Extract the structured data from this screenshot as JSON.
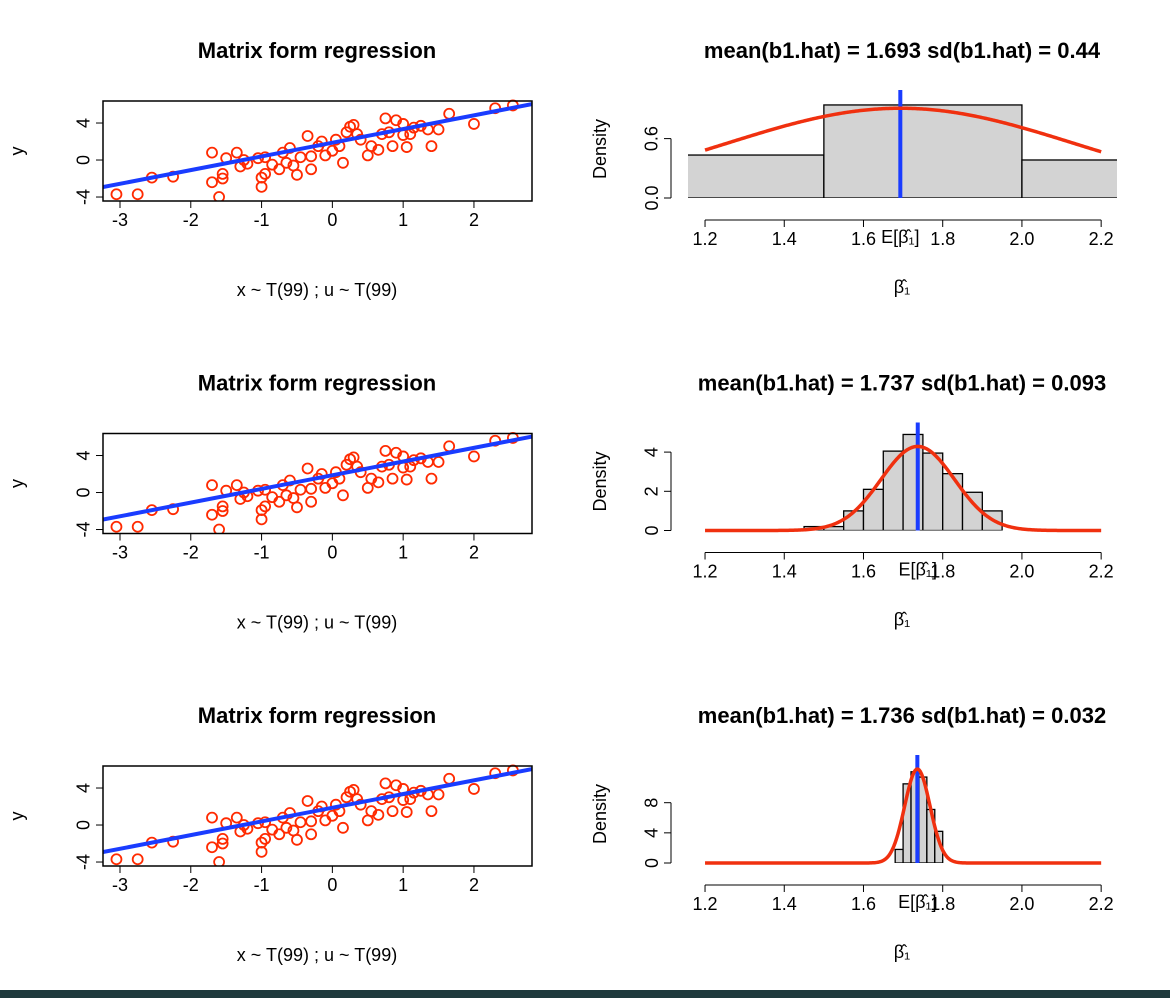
{
  "chart_data": [
    {
      "type": "scatter",
      "title": "Matrix form regression",
      "xlabel": "x ~ T(99) ; u ~ T(99)",
      "ylabel": "y",
      "x": [
        -3.05,
        -2.75,
        -2.55,
        -2.25,
        -1.7,
        -1.7,
        -1.6,
        -1.55,
        -1.55,
        -1.5,
        -1.35,
        -1.3,
        -1.25,
        -1.2,
        -1.05,
        -1.0,
        -1.0,
        -0.95,
        -0.95,
        -0.85,
        -0.75,
        -0.7,
        -0.65,
        -0.6,
        -0.55,
        -0.5,
        -0.45,
        -0.35,
        -0.3,
        -0.3,
        -0.2,
        -0.15,
        -0.1,
        0.0,
        0.05,
        0.1,
        0.15,
        0.2,
        0.25,
        0.3,
        0.35,
        0.4,
        0.5,
        0.55,
        0.65,
        0.7,
        0.75,
        0.8,
        0.85,
        0.9,
        1.0,
        1.0,
        1.05,
        1.1,
        1.15,
        1.25,
        1.35,
        1.4,
        1.5,
        1.65,
        2.0,
        2.3,
        2.55
      ],
      "values": [
        -3.7,
        -3.7,
        -1.9,
        -1.8,
        0.8,
        -2.4,
        -4.0,
        -1.5,
        -2.0,
        0.2,
        0.8,
        -0.7,
        0.0,
        -0.4,
        0.2,
        -1.9,
        -2.9,
        -1.5,
        0.3,
        -0.5,
        -1.0,
        0.8,
        -0.3,
        1.3,
        -0.6,
        -1.6,
        0.3,
        2.6,
        0.4,
        -1.0,
        1.5,
        2.0,
        0.5,
        1.0,
        2.2,
        1.5,
        -0.3,
        3.0,
        3.6,
        3.8,
        2.8,
        2.2,
        0.5,
        1.5,
        1.1,
        2.8,
        4.5,
        3.0,
        1.5,
        4.3,
        3.9,
        2.7,
        1.4,
        2.8,
        3.5,
        3.7,
        3.3,
        1.5,
        3.3,
        5.0,
        3.9,
        5.6,
        5.9
      ],
      "color": "#ff2a00",
      "line": {
        "intercept": 1.87,
        "slope": 1.48,
        "color": "#1a3cff"
      },
      "xlim": [
        -3.24,
        2.82
      ],
      "ylim": [
        -4.43,
        6.38
      ],
      "xticks": [
        -3,
        -2,
        -1,
        0,
        1,
        2
      ],
      "yticks": [
        -4,
        0,
        4
      ]
    },
    {
      "type": "histogram",
      "title": "mean(b1.hat) = 1.693  sd(b1.hat) = 0.44",
      "xlabel": "β̂₁",
      "ylabel": "Density",
      "bins": [
        1.0,
        1.5,
        2.0,
        2.5
      ],
      "values": [
        0.434,
        0.94,
        0.384
      ],
      "color": "#d3d3d3",
      "curve": {
        "mean": 1.693,
        "sd": 0.44,
        "from": 1.2,
        "to": 2.2,
        "color": "#f0300f"
      },
      "mean_line": {
        "value": 1.693,
        "color": "#1a3cff",
        "label": "E[β̂₁]"
      },
      "xlim": [
        1.157,
        2.24
      ],
      "ylim": [
        0,
        0.99
      ],
      "xticks": [
        1.2,
        1.4,
        1.6,
        1.8,
        {
          "value": 2,
          "label": "2.0"
        },
        2.2
      ],
      "yticks": [
        {
          "value": 0,
          "label": "0.0"
        },
        0.6
      ]
    },
    {
      "type": "scatter",
      "title": "Matrix form regression",
      "xlabel": "x ~ T(99) ; u ~ T(99)",
      "ylabel": "y",
      "x": [
        -3.05,
        -2.75,
        -2.55,
        -2.25,
        -1.7,
        -1.7,
        -1.6,
        -1.55,
        -1.55,
        -1.5,
        -1.35,
        -1.3,
        -1.25,
        -1.2,
        -1.05,
        -1.0,
        -1.0,
        -0.95,
        -0.95,
        -0.85,
        -0.75,
        -0.7,
        -0.65,
        -0.6,
        -0.55,
        -0.5,
        -0.45,
        -0.35,
        -0.3,
        -0.3,
        -0.2,
        -0.15,
        -0.1,
        0.0,
        0.05,
        0.1,
        0.15,
        0.2,
        0.25,
        0.3,
        0.35,
        0.4,
        0.5,
        0.55,
        0.65,
        0.7,
        0.75,
        0.8,
        0.85,
        0.9,
        1.0,
        1.0,
        1.05,
        1.1,
        1.15,
        1.25,
        1.35,
        1.4,
        1.5,
        1.65,
        2.0,
        2.3,
        2.55
      ],
      "values": [
        -3.7,
        -3.7,
        -1.9,
        -1.8,
        0.8,
        -2.4,
        -4.0,
        -1.5,
        -2.0,
        0.2,
        0.8,
        -0.7,
        0.0,
        -0.4,
        0.2,
        -1.9,
        -2.9,
        -1.5,
        0.3,
        -0.5,
        -1.0,
        0.8,
        -0.3,
        1.3,
        -0.6,
        -1.6,
        0.3,
        2.6,
        0.4,
        -1.0,
        1.5,
        2.0,
        0.5,
        1.0,
        2.2,
        1.5,
        -0.3,
        3.0,
        3.6,
        3.8,
        2.8,
        2.2,
        0.5,
        1.5,
        1.1,
        2.8,
        4.5,
        3.0,
        1.5,
        4.3,
        3.9,
        2.7,
        1.4,
        2.8,
        3.5,
        3.7,
        3.3,
        1.5,
        3.3,
        5.0,
        3.9,
        5.6,
        5.9
      ],
      "color": "#ff2a00",
      "line": {
        "intercept": 1.87,
        "slope": 1.48,
        "color": "#1a3cff"
      },
      "xlim": [
        -3.24,
        2.82
      ],
      "ylim": [
        -4.43,
        6.38
      ],
      "xticks": [
        -3,
        -2,
        -1,
        0,
        1,
        2
      ],
      "yticks": [
        -4,
        0,
        4
      ]
    },
    {
      "type": "histogram",
      "title": "mean(b1.hat) = 1.737  sd(b1.hat) = 0.093",
      "xlabel": "β̂₁",
      "ylabel": "Density",
      "bins": [
        1.45,
        1.5,
        1.55,
        1.6,
        1.65,
        1.7,
        1.75,
        1.8,
        1.85,
        1.9,
        1.95
      ],
      "values": [
        0.2,
        0.2,
        1.0,
        2.1,
        4.05,
        4.9,
        3.95,
        2.9,
        1.95,
        1.0
      ],
      "color": "#d3d3d3",
      "curve": {
        "mean": 1.737,
        "sd": 0.093,
        "from": 1.2,
        "to": 2.2,
        "color": "#f0300f"
      },
      "mean_line": {
        "value": 1.737,
        "color": "#1a3cff",
        "label": "E[β̂₁]"
      },
      "xlim": [
        1.157,
        2.24
      ],
      "ylim": [
        0,
        5.0
      ],
      "xticks": [
        1.2,
        1.4,
        1.6,
        1.8,
        {
          "value": 2,
          "label": "2.0"
        },
        2.2
      ],
      "yticks": [
        0,
        2,
        4
      ]
    },
    {
      "type": "scatter",
      "title": "Matrix form regression",
      "xlabel": "x ~ T(99) ; u ~ T(99)",
      "ylabel": "y",
      "x": [
        -3.05,
        -2.75,
        -2.55,
        -2.25,
        -1.7,
        -1.7,
        -1.6,
        -1.55,
        -1.55,
        -1.5,
        -1.35,
        -1.3,
        -1.25,
        -1.2,
        -1.05,
        -1.0,
        -1.0,
        -0.95,
        -0.95,
        -0.85,
        -0.75,
        -0.7,
        -0.65,
        -0.6,
        -0.55,
        -0.5,
        -0.45,
        -0.35,
        -0.3,
        -0.3,
        -0.2,
        -0.15,
        -0.1,
        0.0,
        0.05,
        0.1,
        0.15,
        0.2,
        0.25,
        0.3,
        0.35,
        0.4,
        0.5,
        0.55,
        0.65,
        0.7,
        0.75,
        0.8,
        0.85,
        0.9,
        1.0,
        1.0,
        1.05,
        1.1,
        1.15,
        1.25,
        1.35,
        1.4,
        1.5,
        1.65,
        2.0,
        2.3,
        2.55
      ],
      "values": [
        -3.7,
        -3.7,
        -1.9,
        -1.8,
        0.8,
        -2.4,
        -4.0,
        -1.5,
        -2.0,
        0.2,
        0.8,
        -0.7,
        0.0,
        -0.4,
        0.2,
        -1.9,
        -2.9,
        -1.5,
        0.3,
        -0.5,
        -1.0,
        0.8,
        -0.3,
        1.3,
        -0.6,
        -1.6,
        0.3,
        2.6,
        0.4,
        -1.0,
        1.5,
        2.0,
        0.5,
        1.0,
        2.2,
        1.5,
        -0.3,
        3.0,
        3.6,
        3.8,
        2.8,
        2.2,
        0.5,
        1.5,
        1.1,
        2.8,
        4.5,
        3.0,
        1.5,
        4.3,
        3.9,
        2.7,
        1.4,
        2.8,
        3.5,
        3.7,
        3.3,
        1.5,
        3.3,
        5.0,
        3.9,
        5.6,
        5.9
      ],
      "color": "#ff2a00",
      "line": {
        "intercept": 1.87,
        "slope": 1.48,
        "color": "#1a3cff"
      },
      "xlim": [
        -3.24,
        2.82
      ],
      "ylim": [
        -4.43,
        6.38
      ],
      "xticks": [
        -3,
        -2,
        -1,
        0,
        1,
        2
      ],
      "yticks": [
        -4,
        0,
        4
      ]
    },
    {
      "type": "histogram",
      "title": "mean(b1.hat) = 1.736  sd(b1.hat) = 0.032",
      "xlabel": "β̂₁",
      "ylabel": "Density",
      "bins": [
        1.68,
        1.7,
        1.72,
        1.74,
        1.76,
        1.78,
        1.8
      ],
      "values": [
        1.8,
        10.5,
        12.1,
        11.4,
        7.1,
        4.2
      ],
      "color": "#d3d3d3",
      "curve": {
        "mean": 1.736,
        "sd": 0.032,
        "from": 1.2,
        "to": 2.2,
        "color": "#f0300f"
      },
      "mean_line": {
        "value": 1.736,
        "color": "#1a3cff",
        "label": "E[β̂₁]"
      },
      "xlim": [
        1.157,
        2.24
      ],
      "ylim": [
        0,
        13
      ],
      "xticks": [
        1.2,
        1.4,
        1.6,
        1.8,
        {
          "value": 2,
          "label": "2.0"
        },
        2.2
      ],
      "yticks": [
        0,
        4,
        8
      ]
    }
  ]
}
